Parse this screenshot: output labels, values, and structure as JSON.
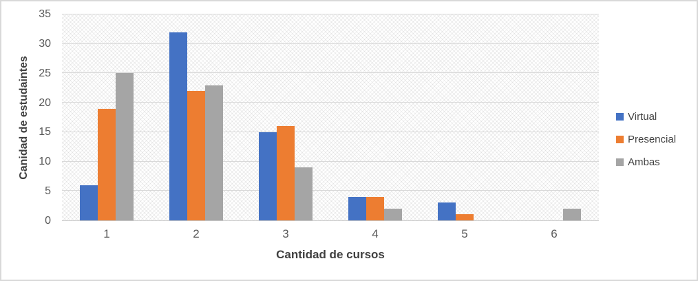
{
  "chart_data": {
    "type": "bar",
    "title": "",
    "categories": [
      "1",
      "2",
      "3",
      "4",
      "5",
      "6"
    ],
    "series": [
      {
        "name": "Virtual",
        "color": "#4472C4",
        "values": [
          6,
          32,
          15,
          4,
          3,
          0
        ]
      },
      {
        "name": "Presencial",
        "color": "#ED7D31",
        "values": [
          19,
          22,
          16,
          4,
          1,
          0
        ]
      },
      {
        "name": "Ambas",
        "color": "#A5A5A5",
        "values": [
          25,
          23,
          9,
          2,
          0,
          2
        ]
      }
    ],
    "xlabel": "Cantidad de cursos",
    "ylabel": "Canidad de estudaintes",
    "ylim": [
      0,
      35
    ],
    "yticks": [
      0,
      5,
      10,
      15,
      20,
      25,
      30,
      35
    ],
    "grid": "horizontal",
    "grid_color": "#d9d9d9",
    "axis_text_color": "#595959",
    "title_text_color": "#3f3f3f",
    "plot_background": "diagonal-crosshatch",
    "legend_position": "right"
  }
}
